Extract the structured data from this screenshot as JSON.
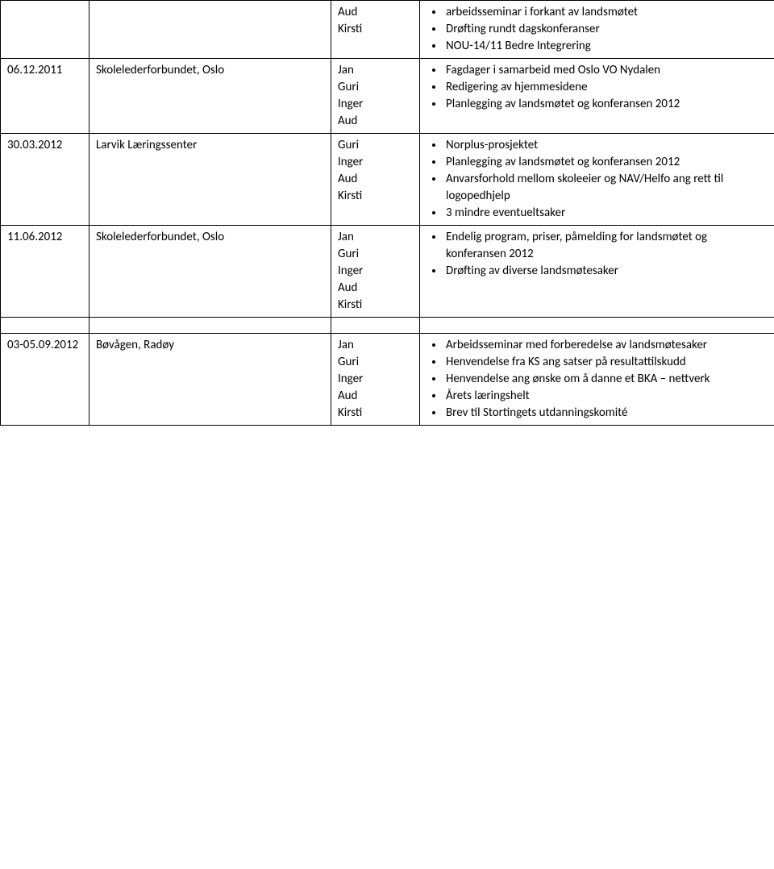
{
  "rows": [
    {
      "date": "",
      "place": "",
      "people": "Aud\nKirsti",
      "bullets": [
        "arbeidsseminar i forkant av landsmøtet",
        "Drøfting rundt dagskonferanser",
        "NOU-14/11 Bedre Integrering"
      ]
    },
    {
      "date": "06.12.2011",
      "place": "Skolelederforbundet, Oslo",
      "people": "Jan\nGuri\nInger\nAud",
      "bullets": [
        "Fagdager i samarbeid med Oslo VO Nydalen",
        "Redigering av hjemmesidene",
        "Planlegging av landsmøtet og konferansen 2012"
      ]
    },
    {
      "date": "30.03.2012",
      "place": "Larvik Læringssenter",
      "people": "Guri\nInger\nAud\nKirsti",
      "bullets": [
        "Norplus-prosjektet",
        "Planlegging av landsmøtet og konferansen 2012",
        "Anvarsforhold mellom skoleeier og NAV/Helfo ang rett til logopedhjelp",
        "3 mindre eventueltsaker"
      ]
    },
    {
      "date": "11.06.2012",
      "place": "Skolelederforbundet, Oslo",
      "people": "Jan\nGuri\nInger\nAud\nKirsti",
      "bullets": [
        "Endelig program, priser, påmelding for landsmøtet og konferansen 2012",
        "Drøfting av diverse landsmøtesaker"
      ]
    }
  ],
  "spacer": true,
  "rows2": [
    {
      "date": "03-05.09.2012",
      "place": "Bøvågen, Radøy",
      "people": "Jan\nGuri\nInger\nAud\nKirsti",
      "bullets": [
        "Arbeidsseminar med forberedelse av landsmøtesaker",
        "Henvendelse fra KS ang satser på resultattilskudd",
        "Henvendelse ang ønske om å danne et BKA – nettverk",
        "Årets læringshelt",
        "Brev til Stortingets utdanningskomité"
      ]
    }
  ]
}
